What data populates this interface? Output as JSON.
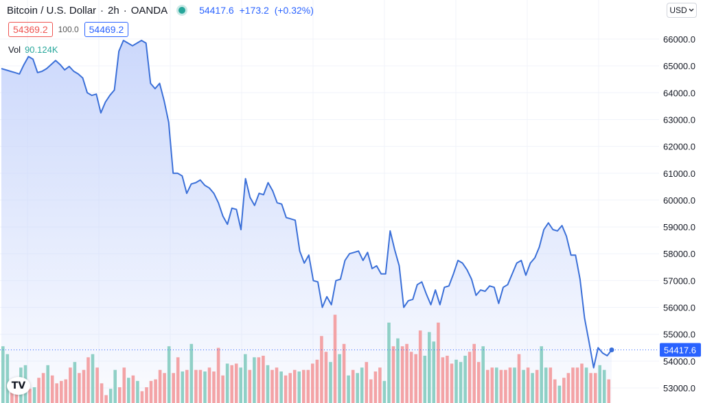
{
  "header": {
    "symbol": "Bitcoin / U.S. Dollar",
    "interval": "2h",
    "exchange": "OANDA",
    "last": "54417.6",
    "change": "+173.2",
    "change_pct": "(+0.32%)"
  },
  "bid_ask": {
    "bid": "54369.2",
    "spread": "100.0",
    "ask": "54469.2"
  },
  "volume": {
    "label": "Vol",
    "value": "90.124K"
  },
  "currency": {
    "label": "USD",
    "icon": "chevron-down-icon"
  },
  "logo": {
    "text": "TV"
  },
  "colors": {
    "line": "#3a6fd8",
    "area": "#c9d6fb",
    "up": "#8fd0c6",
    "down": "#f3a3a6",
    "grid": "#f0f3fa"
  },
  "chart_data": {
    "type": "area",
    "grid": true,
    "y_ticks": [
      "66000.0",
      "65000.0",
      "64000.0",
      "63000.0",
      "62000.0",
      "61000.0",
      "60000.0",
      "59000.0",
      "58000.0",
      "57000.0",
      "56000.0",
      "55000.0",
      "54000.0",
      "53000.0"
    ],
    "ylim": [
      52500,
      67400
    ],
    "last_price_label": "54417.6",
    "last_price": 54417.6,
    "price": [
      64900,
      64850,
      64800,
      64750,
      64700,
      65050,
      65350,
      65250,
      64750,
      64800,
      64900,
      65050,
      65200,
      65050,
      64850,
      64980,
      64800,
      64700,
      64550,
      64000,
      63900,
      63950,
      63250,
      63650,
      63900,
      64100,
      65550,
      65950,
      65850,
      65750,
      65850,
      65950,
      65850,
      64350,
      64150,
      64350,
      63700,
      62900,
      61000,
      61000,
      60900,
      60250,
      60600,
      60650,
      60750,
      60550,
      60450,
      60250,
      59900,
      59400,
      59100,
      59700,
      59650,
      58900,
      60800,
      60100,
      59800,
      60250,
      60200,
      60650,
      60350,
      59900,
      59850,
      59350,
      59300,
      59250,
      58100,
      57650,
      57950,
      57000,
      56950,
      56000,
      56400,
      56100,
      57000,
      57050,
      57750,
      58000,
      58050,
      58100,
      57750,
      58050,
      57450,
      57550,
      57250,
      57250,
      58850,
      58150,
      57550,
      56000,
      56250,
      56300,
      56850,
      56950,
      56500,
      56100,
      56650,
      56100,
      56750,
      56800,
      57250,
      57750,
      57650,
      57400,
      57050,
      56450,
      56650,
      56600,
      56800,
      56750,
      56150,
      56750,
      56850,
      57250,
      57650,
      57750,
      57200,
      57650,
      57850,
      58250,
      58900,
      59150,
      58900,
      58850,
      59050,
      58650,
      57950,
      57950,
      57050,
      55600,
      54700,
      53750,
      54500,
      54300,
      54200,
      54417.6
    ],
    "vol_up": [
      1,
      1,
      0,
      0,
      1,
      1,
      0,
      1,
      0,
      0,
      1,
      0,
      0,
      0,
      0,
      0,
      1,
      0,
      0,
      0,
      1,
      0,
      0,
      0,
      1,
      1,
      0,
      0,
      1,
      0,
      1,
      0,
      0,
      0,
      0,
      0,
      0,
      1,
      0,
      0,
      1,
      0,
      1,
      0,
      0,
      1,
      0,
      0,
      0,
      0,
      1,
      0,
      0,
      1,
      1,
      0,
      1,
      0,
      0,
      1,
      0,
      0,
      1,
      0,
      0,
      0,
      1,
      0,
      0,
      0,
      0,
      0,
      0,
      1,
      0,
      1,
      0,
      1,
      0,
      1,
      1,
      0,
      0,
      0,
      0,
      1,
      1,
      0,
      1,
      0,
      0,
      0,
      0,
      0,
      1,
      1,
      1,
      0,
      0,
      0,
      0,
      1,
      1,
      1,
      0,
      0,
      0,
      1,
      0,
      0,
      1,
      0,
      0,
      0,
      1,
      0,
      1,
      0,
      1,
      0,
      1,
      1,
      0,
      0,
      1,
      0,
      0,
      0,
      0,
      0,
      1,
      0,
      0,
      1,
      1,
      0
    ],
    "volume": [
      0.72,
      0.62,
      0.22,
      0.28,
      0.45,
      0.48,
      0.18,
      0.2,
      0.32,
      0.38,
      0.48,
      0.35,
      0.25,
      0.28,
      0.3,
      0.45,
      0.52,
      0.38,
      0.42,
      0.58,
      0.62,
      0.45,
      0.25,
      0.1,
      0.18,
      0.42,
      0.2,
      0.45,
      0.32,
      0.35,
      0.28,
      0.15,
      0.2,
      0.28,
      0.3,
      0.42,
      0.38,
      0.72,
      0.38,
      0.58,
      0.4,
      0.42,
      0.75,
      0.42,
      0.42,
      0.4,
      0.45,
      0.4,
      0.7,
      0.35,
      0.5,
      0.48,
      0.5,
      0.45,
      0.62,
      0.42,
      0.58,
      0.58,
      0.6,
      0.48,
      0.42,
      0.45,
      0.4,
      0.35,
      0.38,
      0.42,
      0.4,
      0.42,
      0.42,
      0.5,
      0.55,
      0.85,
      0.65,
      0.52,
      1.12,
      0.62,
      0.75,
      0.35,
      0.42,
      0.38,
      0.45,
      0.52,
      0.3,
      0.4,
      0.45,
      0.28,
      1.02,
      0.72,
      0.82,
      0.72,
      0.75,
      0.65,
      0.62,
      0.92,
      0.6,
      0.9,
      0.78,
      1.02,
      0.58,
      0.6,
      0.5,
      0.55,
      0.52,
      0.6,
      0.65,
      0.75,
      0.52,
      0.72,
      0.42,
      0.45,
      0.45,
      0.42,
      0.42,
      0.45,
      0.45,
      0.62,
      0.42,
      0.45,
      0.38,
      0.42,
      0.72,
      0.45,
      0.45,
      0.3,
      0.22,
      0.32,
      0.38,
      0.45,
      0.45,
      0.5,
      0.45,
      0.38,
      0.38,
      0.48,
      0.42,
      0.3
    ]
  }
}
